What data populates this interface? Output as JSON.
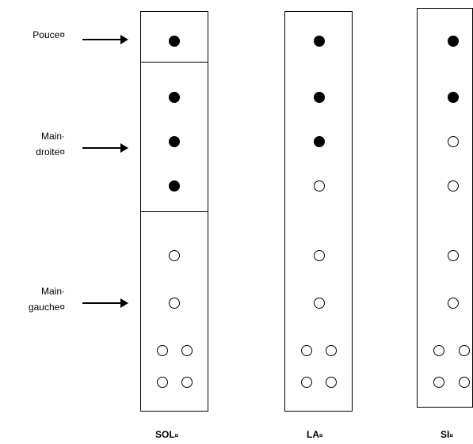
{
  "labels": {
    "thumb": "Pouce¤",
    "right_hand_line1": "Main·",
    "right_hand_line2": "droite¤",
    "left_hand_line1": "Main·",
    "left_hand_line2": "gauche¤"
  },
  "fingerings": [
    {
      "note": "SOL",
      "suffix": "¤",
      "holes": [
        "closed",
        "closed",
        "closed",
        "closed",
        "open",
        "open",
        "open",
        "open",
        "open",
        "open"
      ]
    },
    {
      "note": "LA",
      "suffix": "¤",
      "holes": [
        "closed",
        "closed",
        "closed",
        "open",
        "open",
        "open",
        "open",
        "open",
        "open",
        "open"
      ]
    },
    {
      "note": "SI",
      "suffix": "¤",
      "holes": [
        "closed",
        "closed",
        "open",
        "open",
        "open",
        "open",
        "open",
        "open",
        "open",
        "open"
      ]
    }
  ]
}
